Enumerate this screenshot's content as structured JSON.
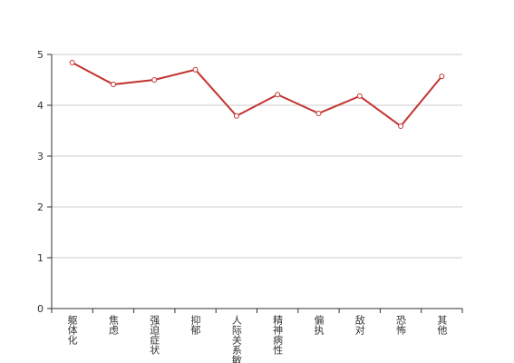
{
  "chart_data": {
    "type": "line",
    "categories": [
      "躯体化",
      "焦虑",
      "强迫症状",
      "抑郁",
      "人际关系敏感",
      "精神病性",
      "偏执",
      "敌对",
      "恐怖",
      "其他"
    ],
    "series": [
      {
        "name": "score",
        "color": "#c23531",
        "values": [
          4.84,
          4.41,
          4.5,
          4.7,
          3.79,
          4.21,
          3.84,
          4.18,
          3.59,
          4.57
        ]
      }
    ],
    "ylim": [
      0,
      5
    ],
    "yticks": [
      0,
      1,
      2,
      3,
      4,
      5
    ],
    "grid": true
  }
}
